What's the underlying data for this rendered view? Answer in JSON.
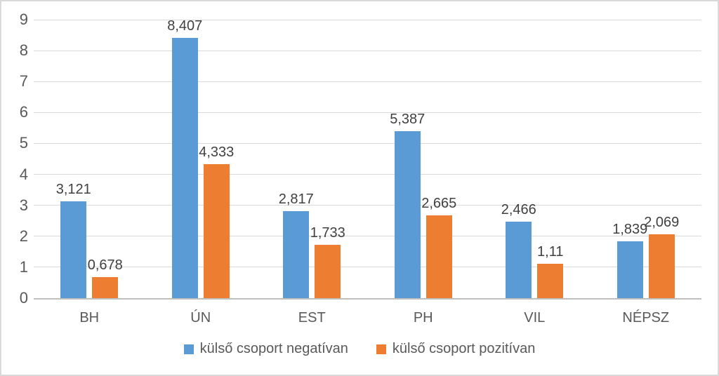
{
  "chart_data": {
    "type": "bar",
    "title": "",
    "xlabel": "",
    "ylabel": "",
    "categories": [
      "BH",
      "ÚN",
      "EST",
      "PH",
      "VIL",
      "NÉPSZ"
    ],
    "series": [
      {
        "name": "külső csoport negatívan",
        "color": "#5B9BD5",
        "values": [
          3.121,
          8.407,
          2.817,
          5.387,
          2.466,
          1.839
        ],
        "value_labels": [
          "3,121",
          "8,407",
          "2,817",
          "5,387",
          "2,466",
          "1,839"
        ]
      },
      {
        "name": "külső csoport pozitívan",
        "color": "#ED7D31",
        "values": [
          0.678,
          4.333,
          1.733,
          2.665,
          1.11,
          2.069
        ],
        "value_labels": [
          "0,678",
          "4,333",
          "1,733",
          "2,665",
          "1,11",
          "2,069"
        ]
      }
    ],
    "ylim": [
      0,
      9
    ],
    "yticks": [
      "0",
      "1",
      "2",
      "3",
      "4",
      "5",
      "6",
      "7",
      "8",
      "9"
    ],
    "grid": true,
    "legend_position": "bottom"
  },
  "style": {
    "background": "#FFFFFF",
    "border_color": "#D9D9D9",
    "gridline_color": "#D9D9D9",
    "axis_line_color": "#BFBFBF",
    "tick_text_color": "#595959",
    "data_label_color": "#404040"
  }
}
